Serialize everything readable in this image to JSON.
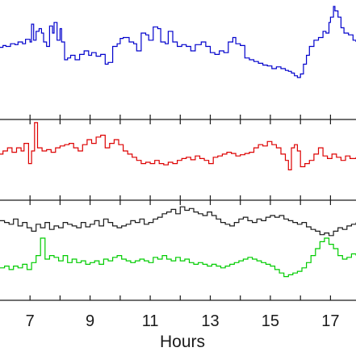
{
  "chart_data": [
    {
      "type": "line",
      "panel": 1,
      "xlim": [
        6.0,
        17.85
      ],
      "ylim": [
        0,
        1
      ],
      "series": [
        {
          "color": "#0000cc",
          "x": [
            6.0,
            6.1,
            6.2,
            6.35,
            6.5,
            6.6,
            6.75,
            6.85,
            7.0,
            7.05,
            7.12,
            7.2,
            7.3,
            7.38,
            7.45,
            7.55,
            7.65,
            7.75,
            7.8,
            7.9,
            8.0,
            8.05,
            8.15,
            8.25,
            8.35,
            8.5,
            8.65,
            8.8,
            8.95,
            9.05,
            9.2,
            9.35,
            9.5,
            9.6,
            9.75,
            9.9,
            10.0,
            10.1,
            10.3,
            10.45,
            10.55,
            10.7,
            10.85,
            10.95,
            11.1,
            11.25,
            11.35,
            11.5,
            11.6,
            11.75,
            11.9,
            12.05,
            12.2,
            12.35,
            12.5,
            12.7,
            12.85,
            13.0,
            13.15,
            13.3,
            13.45,
            13.6,
            13.75,
            13.85,
            14.0,
            14.15,
            14.3,
            14.45,
            14.6,
            14.75,
            14.9,
            15.05,
            15.2,
            15.35,
            15.5,
            15.6,
            15.7,
            15.8,
            15.9,
            16.0,
            16.1,
            16.2,
            16.3,
            16.45,
            16.6,
            16.75,
            16.85,
            16.95,
            17.0,
            17.1,
            17.15,
            17.25,
            17.35,
            17.45,
            17.6,
            17.75,
            17.85
          ],
          "y": [
            0.54,
            0.56,
            0.55,
            0.58,
            0.57,
            0.6,
            0.58,
            0.63,
            0.6,
            0.8,
            0.62,
            0.72,
            0.75,
            0.7,
            0.6,
            0.55,
            0.78,
            0.7,
            0.82,
            0.62,
            0.75,
            0.6,
            0.4,
            0.42,
            0.45,
            0.4,
            0.46,
            0.5,
            0.45,
            0.48,
            0.44,
            0.46,
            0.35,
            0.37,
            0.55,
            0.58,
            0.64,
            0.65,
            0.6,
            0.58,
            0.5,
            0.7,
            0.68,
            0.62,
            0.77,
            0.75,
            0.6,
            0.58,
            0.72,
            0.6,
            0.55,
            0.57,
            0.55,
            0.5,
            0.57,
            0.6,
            0.55,
            0.48,
            0.46,
            0.5,
            0.48,
            0.6,
            0.65,
            0.58,
            0.56,
            0.42,
            0.4,
            0.38,
            0.36,
            0.34,
            0.33,
            0.3,
            0.32,
            0.3,
            0.28,
            0.27,
            0.25,
            0.22,
            0.2,
            0.24,
            0.35,
            0.45,
            0.55,
            0.62,
            0.65,
            0.72,
            0.7,
            0.82,
            0.88,
            1.0,
            0.95,
            0.88,
            0.76,
            0.7,
            0.68,
            0.62,
            0.6
          ]
        }
      ]
    },
    {
      "type": "line",
      "panel": 2,
      "xlim": [
        6.0,
        17.85
      ],
      "ylim": [
        0,
        1
      ],
      "series": [
        {
          "color": "#dd0000",
          "x": [
            6.0,
            6.1,
            6.25,
            6.4,
            6.55,
            6.7,
            6.8,
            6.95,
            7.05,
            7.15,
            7.25,
            7.4,
            7.55,
            7.7,
            7.85,
            8.0,
            8.15,
            8.3,
            8.45,
            8.6,
            8.75,
            8.9,
            9.05,
            9.2,
            9.35,
            9.5,
            9.65,
            9.8,
            9.95,
            10.1,
            10.25,
            10.4,
            10.55,
            10.7,
            10.85,
            11.0,
            11.15,
            11.3,
            11.45,
            11.6,
            11.75,
            11.9,
            12.05,
            12.2,
            12.35,
            12.5,
            12.65,
            12.8,
            12.95,
            13.1,
            13.25,
            13.4,
            13.55,
            13.7,
            13.85,
            14.0,
            14.15,
            14.3,
            14.45,
            14.6,
            14.75,
            14.9,
            15.05,
            15.2,
            15.35,
            15.5,
            15.6,
            15.7,
            15.8,
            15.9,
            16.0,
            16.15,
            16.3,
            16.45,
            16.6,
            16.75,
            16.9,
            17.05,
            17.2,
            17.35,
            17.5,
            17.65,
            17.85
          ],
          "y": [
            0.45,
            0.5,
            0.55,
            0.48,
            0.55,
            0.5,
            0.62,
            0.3,
            0.5,
            0.95,
            0.55,
            0.5,
            0.52,
            0.48,
            0.55,
            0.58,
            0.6,
            0.62,
            0.55,
            0.5,
            0.6,
            0.68,
            0.62,
            0.72,
            0.75,
            0.55,
            0.62,
            0.68,
            0.6,
            0.5,
            0.45,
            0.4,
            0.35,
            0.3,
            0.32,
            0.3,
            0.35,
            0.3,
            0.28,
            0.32,
            0.3,
            0.35,
            0.38,
            0.4,
            0.36,
            0.42,
            0.38,
            0.35,
            0.3,
            0.4,
            0.42,
            0.45,
            0.48,
            0.46,
            0.42,
            0.44,
            0.46,
            0.48,
            0.55,
            0.6,
            0.58,
            0.65,
            0.6,
            0.55,
            0.45,
            0.35,
            0.2,
            0.55,
            0.6,
            0.5,
            0.25,
            0.3,
            0.35,
            0.45,
            0.55,
            0.42,
            0.38,
            0.45,
            0.4,
            0.35,
            0.42,
            0.38,
            0.4
          ]
        }
      ]
    },
    {
      "type": "line",
      "panel": 3,
      "xlim": [
        6.0,
        17.85
      ],
      "ylim": [
        0,
        1
      ],
      "series": [
        {
          "color": "#1a1a1a",
          "x": [
            6.0,
            6.15,
            6.3,
            6.45,
            6.6,
            6.75,
            6.9,
            7.05,
            7.2,
            7.35,
            7.5,
            7.65,
            7.8,
            7.95,
            8.1,
            8.25,
            8.4,
            8.55,
            8.7,
            8.85,
            9.0,
            9.15,
            9.3,
            9.45,
            9.6,
            9.75,
            9.9,
            10.05,
            10.2,
            10.35,
            10.5,
            10.65,
            10.8,
            10.95,
            11.1,
            11.25,
            11.4,
            11.55,
            11.7,
            11.85,
            12.0,
            12.15,
            12.3,
            12.45,
            12.6,
            12.75,
            12.9,
            13.05,
            13.2,
            13.35,
            13.5,
            13.65,
            13.8,
            13.95,
            14.1,
            14.25,
            14.4,
            14.55,
            14.7,
            14.85,
            15.0,
            15.15,
            15.3,
            15.45,
            15.6,
            15.75,
            15.9,
            16.05,
            16.2,
            16.35,
            16.5,
            16.65,
            16.8,
            16.95,
            17.1,
            17.25,
            17.4,
            17.55,
            17.7,
            17.85
          ],
          "y": [
            0.82,
            0.8,
            0.78,
            0.84,
            0.76,
            0.8,
            0.74,
            0.7,
            0.78,
            0.74,
            0.8,
            0.72,
            0.76,
            0.74,
            0.8,
            0.78,
            0.76,
            0.74,
            0.8,
            0.75,
            0.78,
            0.82,
            0.76,
            0.84,
            0.8,
            0.76,
            0.74,
            0.76,
            0.78,
            0.82,
            0.8,
            0.84,
            0.78,
            0.8,
            0.84,
            0.86,
            0.9,
            0.92,
            0.95,
            0.9,
            0.98,
            0.94,
            0.96,
            0.92,
            0.9,
            0.88,
            0.92,
            0.88,
            0.84,
            0.8,
            0.78,
            0.76,
            0.8,
            0.84,
            0.86,
            0.82,
            0.8,
            0.84,
            0.82,
            0.86,
            0.88,
            0.86,
            0.88,
            0.84,
            0.82,
            0.8,
            0.78,
            0.8,
            0.75,
            0.72,
            0.7,
            0.66,
            0.68,
            0.65,
            0.7,
            0.74,
            0.72,
            0.76,
            0.78,
            0.8
          ]
        },
        {
          "color": "#00cc00",
          "x": [
            6.0,
            6.15,
            6.3,
            6.45,
            6.6,
            6.75,
            6.9,
            7.05,
            7.2,
            7.35,
            7.5,
            7.65,
            7.8,
            7.95,
            8.1,
            8.25,
            8.4,
            8.55,
            8.7,
            8.85,
            9.0,
            9.15,
            9.3,
            9.45,
            9.6,
            9.75,
            9.9,
            10.05,
            10.2,
            10.35,
            10.5,
            10.65,
            10.8,
            10.95,
            11.1,
            11.25,
            11.4,
            11.55,
            11.7,
            11.85,
            12.0,
            12.15,
            12.3,
            12.45,
            12.6,
            12.75,
            12.9,
            13.05,
            13.2,
            13.35,
            13.5,
            13.65,
            13.8,
            13.95,
            14.1,
            14.25,
            14.4,
            14.55,
            14.7,
            14.85,
            15.0,
            15.15,
            15.3,
            15.45,
            15.6,
            15.75,
            15.9,
            16.05,
            16.2,
            16.35,
            16.5,
            16.65,
            16.8,
            16.95,
            17.1,
            17.25,
            17.4,
            17.55,
            17.7,
            17.85
          ],
          "y": [
            0.28,
            0.3,
            0.26,
            0.3,
            0.28,
            0.32,
            0.26,
            0.34,
            0.42,
            0.62,
            0.38,
            0.42,
            0.4,
            0.36,
            0.42,
            0.34,
            0.38,
            0.34,
            0.36,
            0.32,
            0.34,
            0.36,
            0.32,
            0.38,
            0.36,
            0.4,
            0.42,
            0.38,
            0.36,
            0.34,
            0.36,
            0.38,
            0.36,
            0.34,
            0.4,
            0.38,
            0.42,
            0.38,
            0.36,
            0.4,
            0.36,
            0.38,
            0.34,
            0.32,
            0.34,
            0.32,
            0.3,
            0.32,
            0.3,
            0.28,
            0.3,
            0.32,
            0.34,
            0.36,
            0.38,
            0.4,
            0.38,
            0.36,
            0.34,
            0.32,
            0.3,
            0.26,
            0.22,
            0.18,
            0.2,
            0.22,
            0.24,
            0.28,
            0.34,
            0.42,
            0.5,
            0.58,
            0.62,
            0.55,
            0.5,
            0.42,
            0.38,
            0.4,
            0.44,
            0.42
          ]
        }
      ]
    }
  ],
  "x_axis": {
    "label": "Hours",
    "ticks": [
      7,
      9,
      11,
      13,
      15,
      17
    ],
    "minor_ticks": [
      7,
      8,
      9,
      10,
      11,
      12,
      13,
      14,
      15,
      16,
      17
    ]
  }
}
